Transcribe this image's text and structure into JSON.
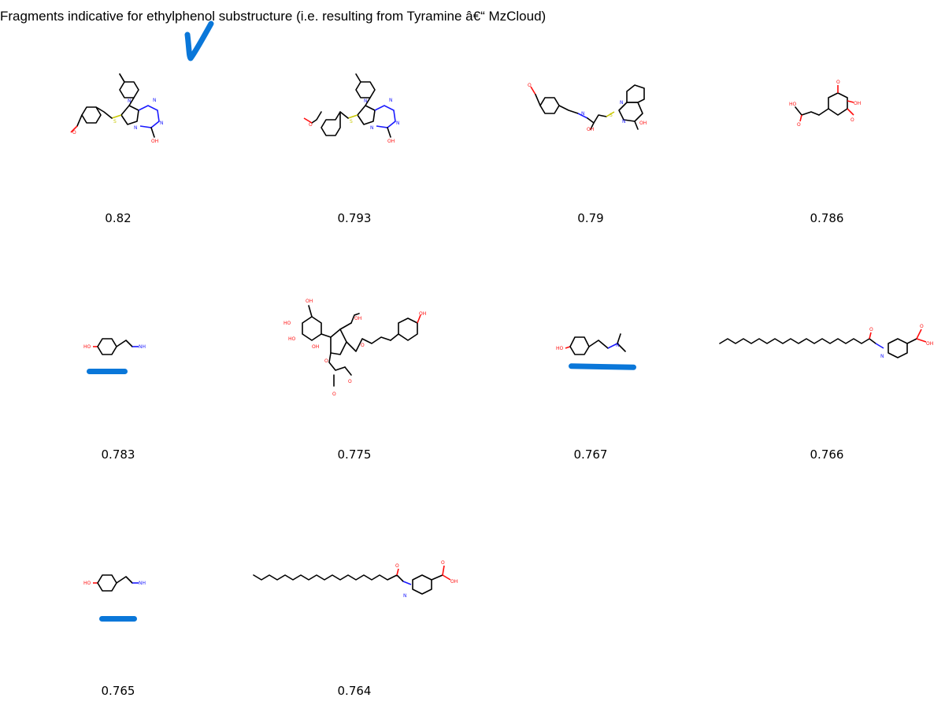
{
  "title": "Fragments indicative for ethylphenol substructure (i.e. resulting from Tyramine â€“ MzCloud)",
  "accent_color": "#0a77d9",
  "results": [
    {
      "score": "0.82",
      "annotation": "checkmark"
    },
    {
      "score": "0.793"
    },
    {
      "score": "0.79"
    },
    {
      "score": "0.786"
    },
    {
      "score": "0.783",
      "annotation": "underline"
    },
    {
      "score": "0.775"
    },
    {
      "score": "0.767",
      "annotation": "underline"
    },
    {
      "score": "0.766"
    },
    {
      "score": "0.765",
      "annotation": "underline"
    },
    {
      "score": "0.764"
    }
  ],
  "atom_labels": {
    "oh": "OH",
    "ho": "HO",
    "o": "O",
    "n": "N",
    "nh": "H",
    "nh2": "NH2",
    "s": "S"
  }
}
